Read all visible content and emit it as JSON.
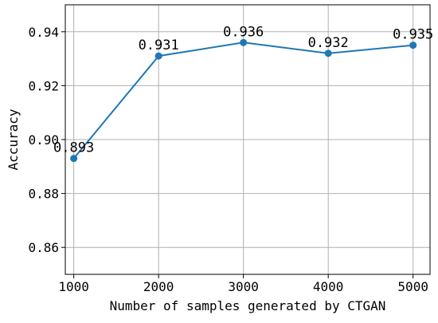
{
  "chart_data": {
    "type": "line",
    "title": "",
    "xlabel": "Number of samples generated by CTGAN",
    "ylabel": "Accuracy",
    "x": [
      1000,
      2000,
      3000,
      4000,
      5000
    ],
    "xticks": [
      "1000",
      "2000",
      "3000",
      "4000",
      "5000"
    ],
    "yticks": [
      "0.86",
      "0.88",
      "0.90",
      "0.92",
      "0.94"
    ],
    "ylim": [
      0.85,
      0.95
    ],
    "xlim": [
      900,
      5200
    ],
    "grid": true,
    "series": [
      {
        "values": [
          0.893,
          0.931,
          0.936,
          0.932,
          0.935
        ],
        "labels": [
          "0.893",
          "0.931",
          "0.936",
          "0.932",
          "0.935"
        ],
        "color": "#1f77b4"
      }
    ]
  }
}
